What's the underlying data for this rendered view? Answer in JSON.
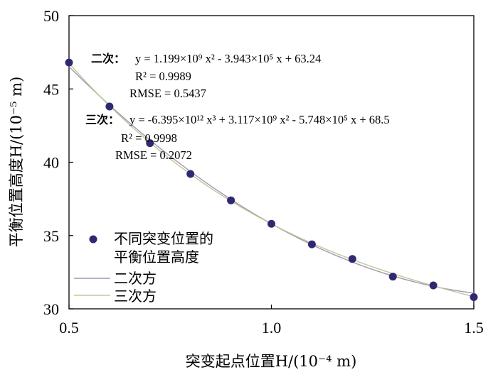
{
  "chart_data": {
    "type": "scatter",
    "xlabel": "突变起点位置H/(10⁻⁴ m)",
    "ylabel": "平衡位置高度H/(10⁻⁵ m)",
    "xlim": [
      0.5,
      1.5
    ],
    "ylim": [
      30,
      50
    ],
    "x_ticks": [
      "0.5",
      "1.0",
      "1.5"
    ],
    "y_ticks": [
      "30",
      "35",
      "40",
      "45",
      "50"
    ],
    "series": [
      {
        "name": "不同突变位置的\n平衡位置高度",
        "kind": "scatter",
        "color": "#2e2a72",
        "x": [
          0.5,
          0.6,
          0.7,
          0.8,
          0.9,
          1.0,
          1.1,
          1.2,
          1.3,
          1.4,
          1.5
        ],
        "y": [
          46.8,
          43.8,
          41.3,
          39.2,
          37.4,
          35.8,
          34.4,
          33.4,
          32.2,
          31.6,
          30.8
        ]
      },
      {
        "name": "二次方",
        "kind": "line",
        "color": "#a892b8",
        "coefficients": [
          63.24,
          -39.43,
          11.99
        ]
      },
      {
        "name": "三次方",
        "kind": "line",
        "color": "#bcc992",
        "coefficients": [
          68.5,
          -57.48,
          31.17,
          -6.395
        ]
      }
    ],
    "annotations": {
      "quadratic": {
        "label": "二次：",
        "equation": "y = 1.199×10⁹ x² - 3.943×10⁵ x + 63.24",
        "r2": "R² = 0.9989",
        "rmse": "RMSE = 0.5437"
      },
      "cubic": {
        "label": "三次：",
        "equation": "y = -6.395×10¹² x³ + 3.117×10⁹ x² - 5.748×10⁵ x + 68.5",
        "r2": "R² = 0.9998",
        "rmse": "RMSE = 0.2072"
      }
    },
    "legend": {
      "placement": "bottom-left",
      "items": [
        "不同突变位置的",
        "平衡位置高度",
        "二次方",
        "三次方"
      ]
    },
    "grid": false
  }
}
